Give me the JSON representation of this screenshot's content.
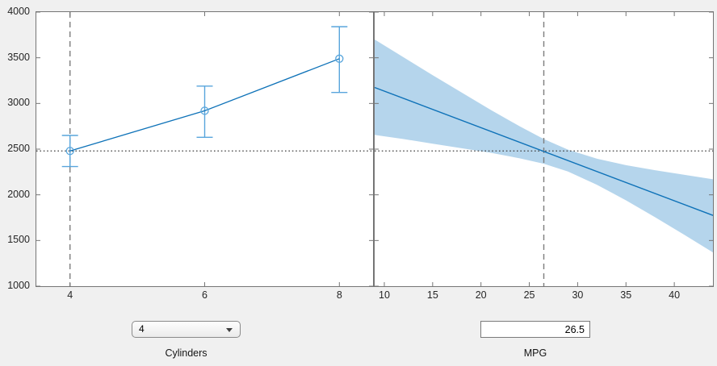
{
  "figure": {
    "background": "#f0f0f0",
    "plot_background": "#ffffff"
  },
  "colors": {
    "fit_line": "#0e72b8",
    "error_bar": "#58a5dc",
    "band_fill": "#b5d5ec",
    "crosshair_dash": "#7d7d7d",
    "reference_dotted": "#3f3f3f",
    "axis": "#757575",
    "tick_label": "#262626"
  },
  "chart_data": [
    {
      "type": "line",
      "name": "cylinders-plot",
      "xlabel": "Cylinders",
      "x": [
        4,
        6,
        8
      ],
      "fitted": [
        2480,
        2920,
        3490
      ],
      "ci_low": [
        2310,
        2630,
        3120
      ],
      "ci_high": [
        2650,
        3190,
        3840
      ],
      "xlim": [
        3.5,
        8.5
      ],
      "ylim": [
        1000,
        4000
      ],
      "xticks": [
        4,
        6,
        8
      ],
      "yticks": [
        1000,
        1500,
        2000,
        2500,
        3000,
        3500,
        4000
      ],
      "show_ytick_labels": true,
      "grid": false,
      "crosshair_x": 4,
      "crosshair_y": 2480
    },
    {
      "type": "area",
      "name": "mpg-plot",
      "xlabel": "MPG",
      "line": {
        "x": [
          9,
          44
        ],
        "y": [
          3175,
          1775
        ]
      },
      "band": {
        "x": [
          9,
          12,
          15,
          18,
          21,
          24,
          26.5,
          29,
          32,
          35,
          38,
          41,
          44
        ],
        "low": [
          2655,
          2610,
          2560,
          2510,
          2460,
          2400,
          2340,
          2255,
          2110,
          1940,
          1755,
          1565,
          1370
        ],
        "high": [
          3700,
          3505,
          3310,
          3120,
          2930,
          2750,
          2610,
          2495,
          2395,
          2325,
          2270,
          2220,
          2170
        ]
      },
      "xlim": [
        9,
        44
      ],
      "ylim": [
        1000,
        4000
      ],
      "xticks": [
        10,
        15,
        20,
        25,
        30,
        35,
        40
      ],
      "yticks": [
        1000,
        1500,
        2000,
        2500,
        3000,
        3500,
        4000
      ],
      "show_ytick_labels": false,
      "grid": false,
      "crosshair_x": 26.5,
      "crosshair_y": 2480
    }
  ],
  "controls": {
    "cylinders": {
      "label": "Cylinders",
      "value": "4"
    },
    "mpg": {
      "label": "MPG",
      "value": "26.5"
    }
  }
}
